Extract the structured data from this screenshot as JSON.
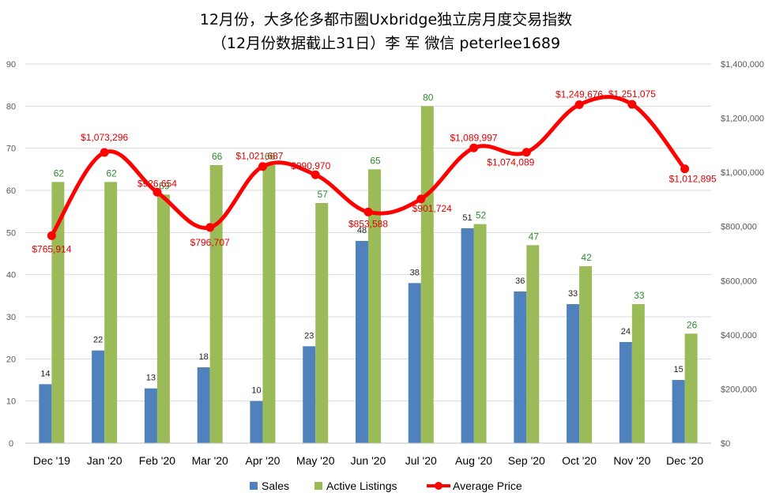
{
  "title_line1": "12月份，大多伦多都市圈Uxbridge独立房月度交易指数",
  "title_line2": "（12月份数据截止31日）李 军  微信  peterlee1689",
  "colors": {
    "sales": "#4f81bd",
    "listings": "#9bbb59",
    "price": "#ff0000",
    "listing_label": "#2e8b2e",
    "price_label": "#e00000",
    "grid": "#d9d9d9"
  },
  "chart_data": {
    "type": "bar",
    "categories": [
      "Dec '19",
      "Jan '20",
      "Feb '20",
      "Mar '20",
      "Apr '20",
      "May '20",
      "Jun '20",
      "Jul '20",
      "Aug '20",
      "Sep '20",
      "Oct '20",
      "Nov '20",
      "Dec '20"
    ],
    "series": [
      {
        "name": "Sales",
        "type": "bar",
        "axis": "left",
        "values": [
          14,
          22,
          13,
          18,
          10,
          23,
          48,
          38,
          51,
          36,
          33,
          24,
          15
        ]
      },
      {
        "name": "Active Listings",
        "type": "bar",
        "axis": "left",
        "values": [
          62,
          62,
          59,
          66,
          66,
          57,
          65,
          80,
          52,
          47,
          42,
          33,
          26
        ]
      },
      {
        "name": "Average Price",
        "type": "line",
        "axis": "right",
        "values": [
          765914,
          1073296,
          926654,
          796707,
          1021687,
          990970,
          853588,
          901724,
          1089997,
          1074089,
          1249676,
          1251075,
          1012895
        ],
        "labels": [
          "$765,914",
          "$1,073,296",
          "$926,654",
          "$796,707",
          "$1,021,687",
          "$990,970",
          "$853,588",
          "$901,724",
          "$1,089,997",
          "$1,074,089",
          "$1,249,676",
          "$1,251,075",
          "$1,012,895"
        ]
      }
    ],
    "y_left": {
      "min": 0,
      "max": 90,
      "step": 10,
      "ticks": [
        "0",
        "10",
        "20",
        "30",
        "40",
        "50",
        "60",
        "70",
        "80",
        "90"
      ]
    },
    "y_right": {
      "min": 0,
      "max": 1400000,
      "step": 200000,
      "ticks": [
        "$0",
        "$200,000",
        "$400,000",
        "$600,000",
        "$800,000",
        "$1,000,000",
        "$1,200,000",
        "$1,400,000"
      ]
    },
    "grid": true,
    "legend_position": "bottom"
  }
}
